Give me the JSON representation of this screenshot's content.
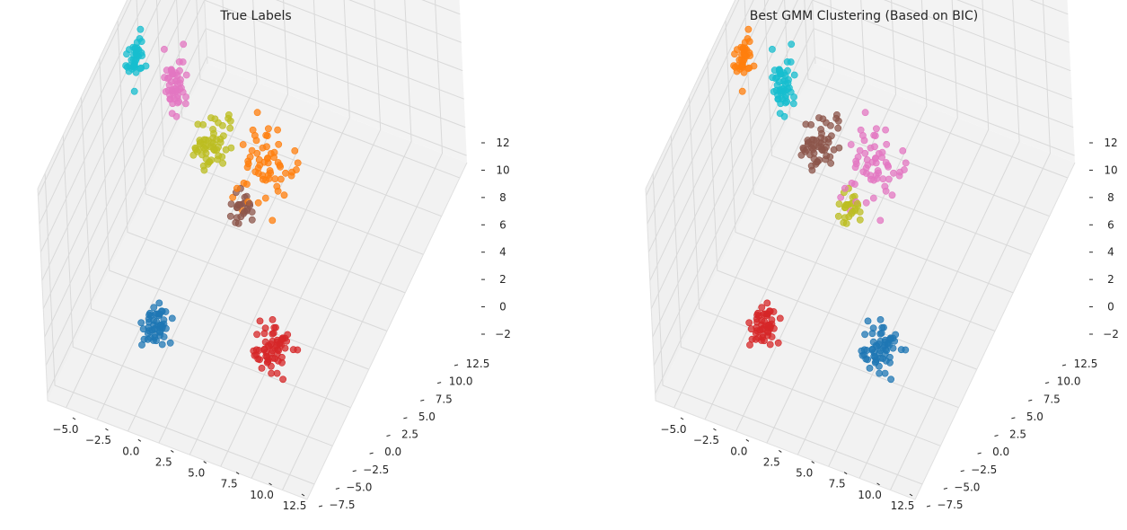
{
  "chart_data": [
    {
      "type": "scatter",
      "title": "True Labels",
      "x_ticks": [
        "−5.0",
        "−2.5",
        "0.0",
        "2.5",
        "5.0",
        "7.5",
        "10.0",
        "12.5"
      ],
      "y_ticks": [
        "−7.5",
        "−5.0",
        "−2.5",
        "0.0",
        "2.5",
        "5.0",
        "7.5",
        "10.0",
        "12.5"
      ],
      "z_ticks": [
        "−2",
        "0",
        "2",
        "4",
        "6",
        "8",
        "10",
        "12"
      ],
      "xlim": [
        -6.5,
        14.5
      ],
      "ylim": [
        -8.5,
        13.5
      ],
      "zlim": [
        -2.5,
        12.5
      ],
      "grid": true,
      "clusters": [
        {
          "color": "#1f77b4",
          "center": [
            0.5,
            -5.0,
            1.5
          ],
          "spread": [
            0.5,
            0.5,
            0.5
          ],
          "n": 50
        },
        {
          "color": "#ff7f0e",
          "center": [
            4.5,
            3.2,
            5.0
          ],
          "spread": [
            1.0,
            1.0,
            1.0
          ],
          "n": 60
        },
        {
          "color": "#d62728",
          "center": [
            8.0,
            -2.0,
            -1.0
          ],
          "spread": [
            0.7,
            0.7,
            0.5
          ],
          "n": 60
        },
        {
          "color": "#8c564b",
          "center": [
            3.7,
            1.3,
            4.0
          ],
          "spread": [
            0.4,
            0.4,
            0.4
          ],
          "n": 25
        },
        {
          "color": "#e377c2",
          "center": [
            -1.9,
            2.3,
            9.7
          ],
          "spread": [
            0.35,
            0.35,
            0.9
          ],
          "n": 50
        },
        {
          "color": "#bcbd22",
          "center": [
            0.7,
            2.5,
            6.5
          ],
          "spread": [
            0.7,
            0.7,
            0.5
          ],
          "n": 55
        },
        {
          "color": "#17becf",
          "center": [
            -4.5,
            1.5,
            11.5
          ],
          "spread": [
            0.35,
            0.35,
            0.7
          ],
          "n": 40
        }
      ]
    },
    {
      "type": "scatter",
      "title": "Best GMM Clustering (Based on BIC)",
      "x_ticks": [
        "−5.0",
        "−2.5",
        "0.0",
        "2.5",
        "5.0",
        "7.5",
        "10.0",
        "12.5"
      ],
      "y_ticks": [
        "−7.5",
        "−5.0",
        "−2.5",
        "0.0",
        "2.5",
        "5.0",
        "7.5",
        "10.0",
        "12.5"
      ],
      "z_ticks": [
        "−2",
        "0",
        "2",
        "4",
        "6",
        "8",
        "10",
        "12"
      ],
      "xlim": [
        -6.5,
        14.5
      ],
      "ylim": [
        -8.5,
        13.5
      ],
      "zlim": [
        -2.5,
        12.5
      ],
      "grid": true,
      "clusters": [
        {
          "color": "#d62728",
          "center": [
            0.5,
            -5.0,
            1.5
          ],
          "spread": [
            0.5,
            0.5,
            0.5
          ],
          "n": 50
        },
        {
          "color": "#e377c2",
          "center": [
            4.5,
            3.2,
            5.0
          ],
          "spread": [
            1.0,
            1.0,
            1.0
          ],
          "n": 60
        },
        {
          "color": "#1f77b4",
          "center": [
            8.0,
            -2.0,
            -1.0
          ],
          "spread": [
            0.7,
            0.7,
            0.5
          ],
          "n": 60
        },
        {
          "color": "#bcbd22",
          "center": [
            3.7,
            1.3,
            4.0
          ],
          "spread": [
            0.4,
            0.4,
            0.4
          ],
          "n": 25
        },
        {
          "color": "#17becf",
          "center": [
            -1.9,
            2.3,
            9.7
          ],
          "spread": [
            0.35,
            0.35,
            0.9
          ],
          "n": 50
        },
        {
          "color": "#8c564b",
          "center": [
            0.7,
            2.5,
            6.5
          ],
          "spread": [
            0.7,
            0.7,
            0.5
          ],
          "n": 55
        },
        {
          "color": "#ff7f0e",
          "center": [
            -4.5,
            1.5,
            11.5
          ],
          "spread": [
            0.35,
            0.35,
            0.7
          ],
          "n": 40
        }
      ]
    }
  ]
}
